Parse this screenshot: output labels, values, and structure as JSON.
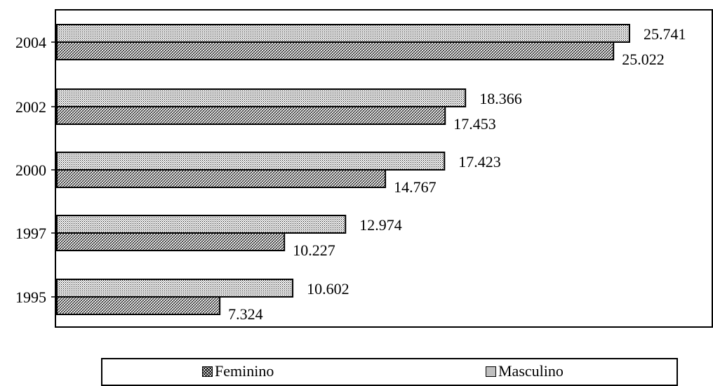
{
  "chart_data": {
    "type": "bar",
    "orientation": "horizontal",
    "categories": [
      "1995",
      "1997",
      "2000",
      "2002",
      "2004"
    ],
    "series": [
      {
        "name": "Feminino",
        "values": [
          7.324,
          10.227,
          14.767,
          17.453,
          25.022
        ],
        "pattern": "crosshatch"
      },
      {
        "name": "Masculino",
        "values": [
          10.602,
          12.974,
          17.423,
          18.366,
          25.741
        ],
        "pattern": "dots"
      }
    ],
    "value_labels": {
      "Feminino": [
        "7.324",
        "10.227",
        "14.767",
        "17.453",
        "25.022"
      ],
      "Masculino": [
        "10.602",
        "12.974",
        "17.423",
        "18.366",
        "25.741"
      ]
    },
    "xlim": [
      0,
      30
    ],
    "grid": false,
    "legend_position": "bottom"
  },
  "legend": {
    "feminino_label": "Feminino",
    "masculino_label": "Masculino"
  },
  "colors": {
    "bar_fill": "#ffffff",
    "bar_stroke": "#000000",
    "pattern_ink": "#000000"
  }
}
